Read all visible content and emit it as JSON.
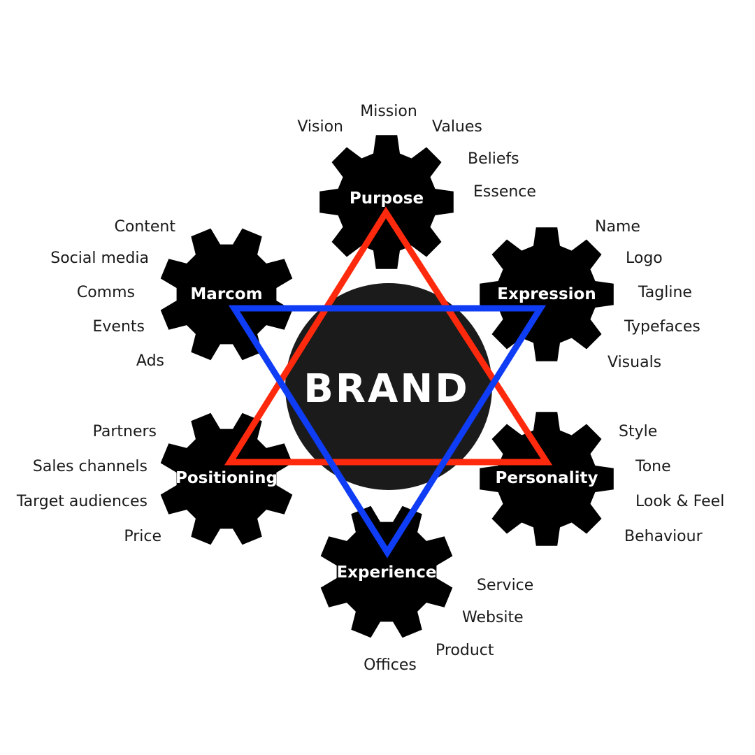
{
  "center": {
    "label": "BRAND"
  },
  "colors": {
    "gear": "#000000",
    "hub": "#1b1b1b",
    "triangle_up": "#ff2a0d",
    "triangle_down": "#0f3cf5",
    "text": "#1a1a1a"
  },
  "gears": {
    "purpose": {
      "title": "Purpose",
      "items": [
        "Vision",
        "Mission",
        "Values",
        "Beliefs",
        "Essence"
      ]
    },
    "marcom": {
      "title": "Marcom",
      "items": [
        "Content",
        "Social media",
        "Comms",
        "Events",
        "Ads"
      ]
    },
    "expression": {
      "title": "Expression",
      "items": [
        "Name",
        "Logo",
        "Tagline",
        "Typefaces",
        "Visuals"
      ]
    },
    "positioning": {
      "title": "Positioning",
      "items": [
        "Partners",
        "Sales channels",
        "Target audiences",
        "Price"
      ]
    },
    "personality": {
      "title": "Personality",
      "items": [
        "Style",
        "Tone",
        "Look & Feel",
        "Behaviour"
      ]
    },
    "experience": {
      "title": "Experience",
      "items": [
        "Service",
        "Website",
        "Product",
        "Offices"
      ]
    }
  }
}
